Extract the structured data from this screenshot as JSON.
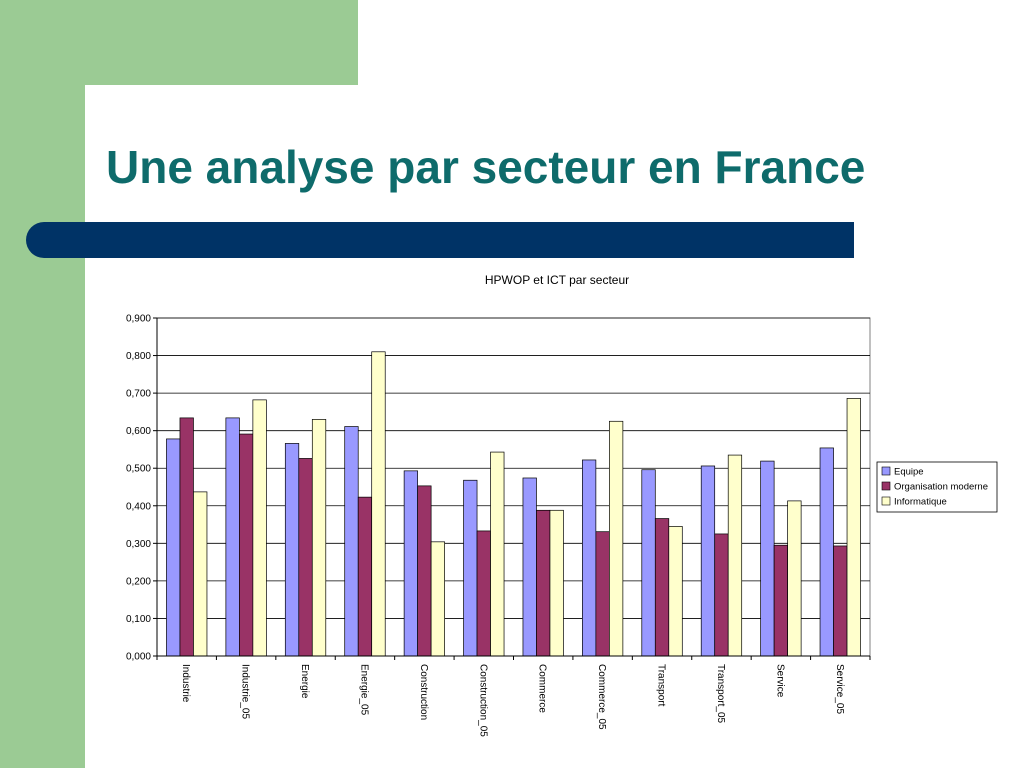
{
  "slide": {
    "title": "Une analyse par secteur en France",
    "colors": {
      "title": "#0e6b6b",
      "green": "#9bcb94",
      "bar": "#003366"
    }
  },
  "chart_data": {
    "type": "bar",
    "title": "HPWOP et ICT par secteur",
    "xlabel": "",
    "ylabel": "",
    "ylim": [
      0,
      0.9
    ],
    "yticks": [
      "0,000",
      "0,100",
      "0,200",
      "0,300",
      "0,400",
      "0,500",
      "0,600",
      "0,700",
      "0,800",
      "0,900"
    ],
    "grid": true,
    "legend_position": "right",
    "categories": [
      "Industrie",
      "Industrie_05",
      "Energie",
      "Energie_05",
      "Construction",
      "Construction_05",
      "Commerce",
      "Commerce_05",
      "Transport",
      "Transport_05",
      "Service",
      "Service_05"
    ],
    "series": [
      {
        "name": "Equipe",
        "color": "#9999ff",
        "values": [
          0.578,
          0.634,
          0.566,
          0.611,
          0.493,
          0.468,
          0.474,
          0.522,
          0.496,
          0.506,
          0.519,
          0.554
        ]
      },
      {
        "name": "Organisation moderne",
        "color": "#993366",
        "values": [
          0.634,
          0.591,
          0.526,
          0.423,
          0.453,
          0.333,
          0.388,
          0.331,
          0.366,
          0.325,
          0.295,
          0.293
        ]
      },
      {
        "name": "Informatique",
        "color": "#ffffcc",
        "values": [
          0.437,
          0.682,
          0.63,
          0.81,
          0.304,
          0.543,
          0.388,
          0.625,
          0.345,
          0.535,
          0.413,
          0.686
        ]
      }
    ]
  }
}
